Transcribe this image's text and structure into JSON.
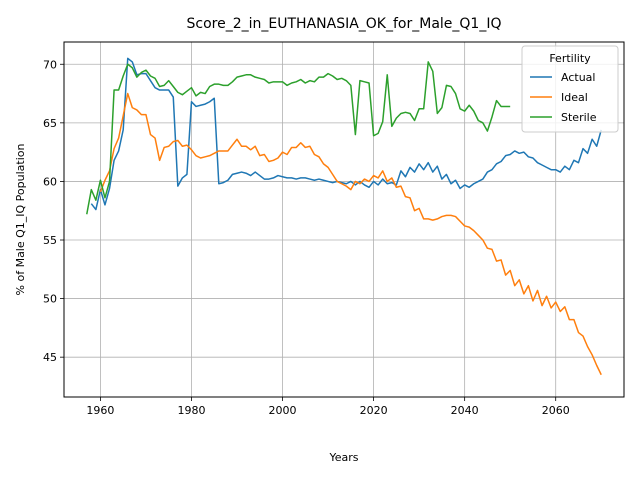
{
  "chart_data": {
    "type": "line",
    "title": "Score_2_in_EUTHANASIA_OK_for_Male_Q1_IQ",
    "xlabel": "Years",
    "ylabel": "% of Male Q1_IQ Population",
    "xlim": [
      1952,
      2075
    ],
    "ylim": [
      41.6,
      71.9
    ],
    "xticks": [
      1960,
      1980,
      2000,
      2020,
      2040,
      2060
    ],
    "yticks": [
      45,
      50,
      55,
      60,
      65,
      70
    ],
    "grid": true,
    "legend": {
      "title": "Fertility",
      "placement": "upper right"
    },
    "series": [
      {
        "name": "Actual",
        "color": "#1f77b4",
        "points": [
          [
            1958,
            58.1
          ],
          [
            1959,
            57.6
          ],
          [
            1960,
            59.3
          ],
          [
            1961,
            58.0
          ],
          [
            1962,
            59.4
          ],
          [
            1963,
            61.8
          ],
          [
            1964,
            62.6
          ],
          [
            1965,
            64.4
          ],
          [
            1966,
            70.5
          ],
          [
            1967,
            70.2
          ],
          [
            1968,
            69.1
          ],
          [
            1969,
            69.2
          ],
          [
            1970,
            69.2
          ],
          [
            1971,
            68.6
          ],
          [
            1972,
            68.0
          ],
          [
            1973,
            67.8
          ],
          [
            1974,
            67.8
          ],
          [
            1975,
            67.8
          ],
          [
            1976,
            67.2
          ],
          [
            1977,
            59.6
          ],
          [
            1978,
            60.3
          ],
          [
            1979,
            60.6
          ],
          [
            1980,
            66.8
          ],
          [
            1981,
            66.4
          ],
          [
            1982,
            66.5
          ],
          [
            1983,
            66.6
          ],
          [
            1984,
            66.8
          ],
          [
            1985,
            67.1
          ],
          [
            1986,
            59.8
          ],
          [
            1987,
            59.9
          ],
          [
            1988,
            60.1
          ],
          [
            1989,
            60.6
          ],
          [
            1990,
            60.7
          ],
          [
            1991,
            60.8
          ],
          [
            1992,
            60.7
          ],
          [
            1993,
            60.5
          ],
          [
            1994,
            60.8
          ],
          [
            1995,
            60.5
          ],
          [
            1996,
            60.2
          ],
          [
            1997,
            60.2
          ],
          [
            1998,
            60.3
          ],
          [
            1999,
            60.5
          ],
          [
            2000,
            60.4
          ],
          [
            2001,
            60.3
          ],
          [
            2002,
            60.3
          ],
          [
            2003,
            60.2
          ],
          [
            2004,
            60.3
          ],
          [
            2005,
            60.3
          ],
          [
            2006,
            60.2
          ],
          [
            2007,
            60.1
          ],
          [
            2008,
            60.2
          ],
          [
            2009,
            60.1
          ],
          [
            2010,
            60.0
          ],
          [
            2011,
            59.9
          ],
          [
            2012,
            60.0
          ],
          [
            2013,
            59.9
          ],
          [
            2014,
            59.8
          ],
          [
            2015,
            60.0
          ],
          [
            2016,
            59.7
          ],
          [
            2017,
            60.0
          ],
          [
            2018,
            59.7
          ],
          [
            2019,
            59.5
          ],
          [
            2020,
            60.0
          ],
          [
            2021,
            59.7
          ],
          [
            2022,
            60.2
          ],
          [
            2023,
            59.8
          ],
          [
            2024,
            59.9
          ],
          [
            2025,
            59.7
          ],
          [
            2026,
            60.9
          ],
          [
            2027,
            60.4
          ],
          [
            2028,
            61.2
          ],
          [
            2029,
            60.8
          ],
          [
            2030,
            61.5
          ],
          [
            2031,
            61.0
          ],
          [
            2032,
            61.6
          ],
          [
            2033,
            60.8
          ],
          [
            2034,
            61.3
          ],
          [
            2035,
            60.2
          ],
          [
            2036,
            60.6
          ],
          [
            2037,
            59.8
          ],
          [
            2038,
            60.1
          ],
          [
            2039,
            59.4
          ],
          [
            2040,
            59.7
          ],
          [
            2041,
            59.5
          ],
          [
            2042,
            59.8
          ],
          [
            2043,
            60.0
          ],
          [
            2044,
            60.2
          ],
          [
            2045,
            60.8
          ],
          [
            2046,
            61.0
          ],
          [
            2047,
            61.5
          ],
          [
            2048,
            61.7
          ],
          [
            2049,
            62.2
          ],
          [
            2050,
            62.3
          ],
          [
            2051,
            62.6
          ],
          [
            2052,
            62.4
          ],
          [
            2053,
            62.5
          ],
          [
            2054,
            62.1
          ],
          [
            2055,
            62.0
          ],
          [
            2056,
            61.6
          ],
          [
            2057,
            61.4
          ],
          [
            2058,
            61.2
          ],
          [
            2059,
            61.0
          ],
          [
            2060,
            61.0
          ],
          [
            2061,
            60.8
          ],
          [
            2062,
            61.3
          ],
          [
            2063,
            61.0
          ],
          [
            2064,
            61.8
          ],
          [
            2065,
            61.6
          ],
          [
            2066,
            62.8
          ],
          [
            2067,
            62.4
          ],
          [
            2068,
            63.6
          ],
          [
            2069,
            63.0
          ],
          [
            2070,
            64.4
          ]
        ]
      },
      {
        "name": "Ideal",
        "color": "#ff7f0e",
        "points": [
          [
            1960,
            59.1
          ],
          [
            1961,
            60.1
          ],
          [
            1962,
            60.9
          ],
          [
            1963,
            62.8
          ],
          [
            1964,
            63.7
          ],
          [
            1965,
            65.6
          ],
          [
            1966,
            67.5
          ],
          [
            1967,
            66.3
          ],
          [
            1968,
            66.1
          ],
          [
            1969,
            65.7
          ],
          [
            1970,
            65.7
          ],
          [
            1971,
            64.0
          ],
          [
            1972,
            63.7
          ],
          [
            1973,
            61.8
          ],
          [
            1974,
            62.9
          ],
          [
            1975,
            63.0
          ],
          [
            1976,
            63.4
          ],
          [
            1977,
            63.5
          ],
          [
            1978,
            63.0
          ],
          [
            1979,
            63.1
          ],
          [
            1980,
            62.7
          ],
          [
            1981,
            62.2
          ],
          [
            1982,
            62.0
          ],
          [
            1983,
            62.1
          ],
          [
            1984,
            62.2
          ],
          [
            1985,
            62.4
          ],
          [
            1986,
            62.6
          ],
          [
            1987,
            62.6
          ],
          [
            1988,
            62.6
          ],
          [
            1989,
            63.1
          ],
          [
            1990,
            63.6
          ],
          [
            1991,
            63.0
          ],
          [
            1992,
            63.0
          ],
          [
            1993,
            62.7
          ],
          [
            1994,
            63.0
          ],
          [
            1995,
            62.2
          ],
          [
            1996,
            62.3
          ],
          [
            1997,
            61.7
          ],
          [
            1998,
            61.8
          ],
          [
            1999,
            62.0
          ],
          [
            2000,
            62.5
          ],
          [
            2001,
            62.3
          ],
          [
            2002,
            62.9
          ],
          [
            2003,
            62.9
          ],
          [
            2004,
            63.3
          ],
          [
            2005,
            62.9
          ],
          [
            2006,
            63.0
          ],
          [
            2007,
            62.3
          ],
          [
            2008,
            62.1
          ],
          [
            2009,
            61.5
          ],
          [
            2010,
            61.2
          ],
          [
            2011,
            60.6
          ],
          [
            2012,
            60.0
          ],
          [
            2013,
            59.8
          ],
          [
            2014,
            59.6
          ],
          [
            2015,
            59.3
          ],
          [
            2016,
            60.0
          ],
          [
            2017,
            59.8
          ],
          [
            2018,
            60.2
          ],
          [
            2019,
            60.0
          ],
          [
            2020,
            60.5
          ],
          [
            2021,
            60.3
          ],
          [
            2022,
            60.9
          ],
          [
            2023,
            60.0
          ],
          [
            2024,
            60.3
          ],
          [
            2025,
            59.5
          ],
          [
            2026,
            59.6
          ],
          [
            2027,
            58.7
          ],
          [
            2028,
            58.6
          ],
          [
            2029,
            57.5
          ],
          [
            2030,
            57.7
          ],
          [
            2031,
            56.8
          ],
          [
            2032,
            56.8
          ],
          [
            2033,
            56.7
          ],
          [
            2034,
            56.8
          ],
          [
            2035,
            57.0
          ],
          [
            2036,
            57.1
          ],
          [
            2037,
            57.1
          ],
          [
            2038,
            57.0
          ],
          [
            2039,
            56.6
          ],
          [
            2040,
            56.2
          ],
          [
            2041,
            56.1
          ],
          [
            2042,
            55.8
          ],
          [
            2043,
            55.4
          ],
          [
            2044,
            55.0
          ],
          [
            2045,
            54.3
          ],
          [
            2046,
            54.2
          ],
          [
            2047,
            53.2
          ],
          [
            2048,
            53.3
          ],
          [
            2049,
            52.0
          ],
          [
            2050,
            52.4
          ],
          [
            2051,
            51.1
          ],
          [
            2052,
            51.6
          ],
          [
            2053,
            50.4
          ],
          [
            2054,
            51.1
          ],
          [
            2055,
            49.8
          ],
          [
            2056,
            50.7
          ],
          [
            2057,
            49.4
          ],
          [
            2058,
            50.2
          ],
          [
            2059,
            49.2
          ],
          [
            2060,
            49.7
          ],
          [
            2061,
            48.9
          ],
          [
            2062,
            49.3
          ],
          [
            2063,
            48.2
          ],
          [
            2064,
            48.2
          ],
          [
            2065,
            47.1
          ],
          [
            2066,
            46.8
          ],
          [
            2067,
            45.9
          ],
          [
            2068,
            45.2
          ],
          [
            2069,
            44.3
          ],
          [
            2070,
            43.5
          ]
        ]
      },
      {
        "name": "Sterile",
        "color": "#2ca02c",
        "points": [
          [
            1957,
            57.2
          ],
          [
            1958,
            59.3
          ],
          [
            1959,
            58.4
          ],
          [
            1960,
            60.1
          ],
          [
            1961,
            58.6
          ],
          [
            1962,
            60.0
          ],
          [
            1963,
            67.8
          ],
          [
            1964,
            67.8
          ],
          [
            1965,
            69.0
          ],
          [
            1966,
            70.0
          ],
          [
            1967,
            69.7
          ],
          [
            1968,
            68.9
          ],
          [
            1969,
            69.3
          ],
          [
            1970,
            69.5
          ],
          [
            1971,
            69.0
          ],
          [
            1972,
            68.8
          ],
          [
            1973,
            68.1
          ],
          [
            1974,
            68.2
          ],
          [
            1975,
            68.6
          ],
          [
            1976,
            68.1
          ],
          [
            1977,
            67.6
          ],
          [
            1978,
            67.4
          ],
          [
            1979,
            67.7
          ],
          [
            1980,
            68.0
          ],
          [
            1981,
            67.3
          ],
          [
            1982,
            67.6
          ],
          [
            1983,
            67.5
          ],
          [
            1984,
            68.1
          ],
          [
            1985,
            68.3
          ],
          [
            1986,
            68.3
          ],
          [
            1987,
            68.2
          ],
          [
            1988,
            68.2
          ],
          [
            1989,
            68.5
          ],
          [
            1990,
            68.9
          ],
          [
            1991,
            69.0
          ],
          [
            1992,
            69.1
          ],
          [
            1993,
            69.1
          ],
          [
            1994,
            68.9
          ],
          [
            1995,
            68.8
          ],
          [
            1996,
            68.7
          ],
          [
            1997,
            68.4
          ],
          [
            1998,
            68.5
          ],
          [
            1999,
            68.5
          ],
          [
            2000,
            68.5
          ],
          [
            2001,
            68.2
          ],
          [
            2002,
            68.4
          ],
          [
            2003,
            68.5
          ],
          [
            2004,
            68.7
          ],
          [
            2005,
            68.4
          ],
          [
            2006,
            68.6
          ],
          [
            2007,
            68.5
          ],
          [
            2008,
            68.9
          ],
          [
            2009,
            68.9
          ],
          [
            2010,
            69.2
          ],
          [
            2011,
            69.0
          ],
          [
            2012,
            68.7
          ],
          [
            2013,
            68.8
          ],
          [
            2014,
            68.6
          ],
          [
            2015,
            68.2
          ],
          [
            2016,
            64.0
          ],
          [
            2017,
            68.6
          ],
          [
            2018,
            68.5
          ],
          [
            2019,
            68.4
          ],
          [
            2020,
            63.9
          ],
          [
            2021,
            64.1
          ],
          [
            2022,
            65.1
          ],
          [
            2023,
            69.1
          ],
          [
            2024,
            64.7
          ],
          [
            2025,
            65.4
          ],
          [
            2026,
            65.8
          ],
          [
            2027,
            65.9
          ],
          [
            2028,
            65.8
          ],
          [
            2029,
            65.2
          ],
          [
            2030,
            66.2
          ],
          [
            2031,
            66.2
          ],
          [
            2032,
            70.2
          ],
          [
            2033,
            69.4
          ],
          [
            2034,
            65.8
          ],
          [
            2035,
            66.3
          ],
          [
            2036,
            68.2
          ],
          [
            2037,
            68.1
          ],
          [
            2038,
            67.5
          ],
          [
            2039,
            66.2
          ],
          [
            2040,
            66.0
          ],
          [
            2041,
            66.5
          ],
          [
            2042,
            66.0
          ],
          [
            2043,
            65.2
          ],
          [
            2044,
            65.0
          ],
          [
            2045,
            64.3
          ],
          [
            2046,
            65.5
          ],
          [
            2047,
            66.9
          ],
          [
            2048,
            66.4
          ],
          [
            2049,
            66.4
          ],
          [
            2050,
            66.4
          ]
        ]
      }
    ]
  }
}
